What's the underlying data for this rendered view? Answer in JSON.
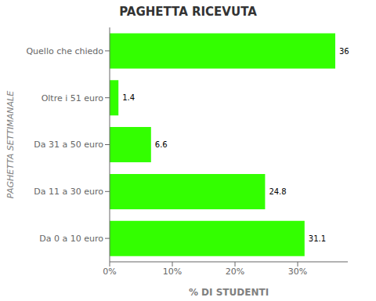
{
  "chart_data": {
    "type": "bar",
    "orientation": "horizontal",
    "title": "PAGHETTA RICEVUTA",
    "xlabel": "% DI STUDENTI",
    "ylabel": "PAGHETTA SETTIMANALE",
    "categories": [
      "Da 0 a 10 euro",
      "Da 11 a 30 euro",
      "Da 31 a 50 euro",
      "Oltre i 51 euro",
      "Quello che chiedo"
    ],
    "values": [
      31.1,
      24.8,
      6.6,
      1.4,
      36
    ],
    "color": "#33FF00",
    "xlim": [
      0,
      38
    ],
    "xticks": [
      {
        "value": 0,
        "label": "0%"
      },
      {
        "value": 10,
        "label": "10%"
      },
      {
        "value": 20,
        "label": "20%"
      },
      {
        "value": 30,
        "label": "30%"
      }
    ],
    "data_labels": true
  }
}
